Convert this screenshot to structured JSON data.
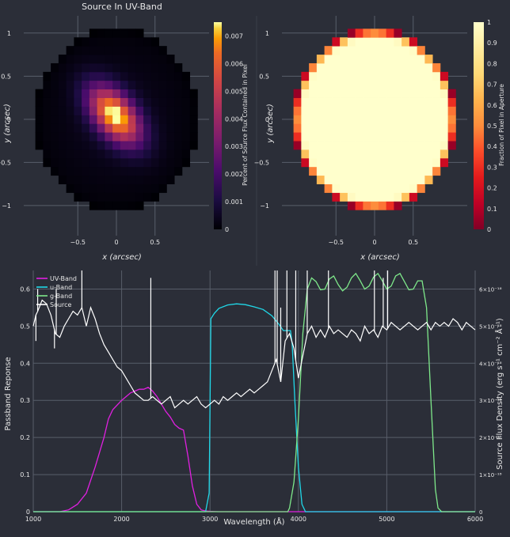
{
  "figure": {
    "background": "#2b2e38",
    "grid_color": "#585e6a",
    "text_color": "#e6e6e6"
  },
  "chart_data": [
    {
      "type": "heatmap",
      "title": "Source In UV-Band",
      "xlabel": "x (arcsec)",
      "ylabel": "y (arcsec)",
      "x_ticks": [
        "−0.5",
        "0",
        "0.5"
      ],
      "y_ticks": [
        "1",
        "0.5",
        "0",
        "−0.5",
        "−1"
      ],
      "xlim": [
        -1.2,
        1.2
      ],
      "ylim": [
        -1.35,
        1.2
      ],
      "colorscale": "inferno",
      "colorbar_label": "Percent of Source Flux Contained in Pixel",
      "colorbar_ticks": [
        "0.007",
        "0.006",
        "0.005",
        "0.004",
        "0.003",
        "0.002",
        "0.001",
        "0"
      ],
      "colorbar_range": [
        0,
        0.0075
      ],
      "source": {
        "peak": 0.0074,
        "center": [
          -0.02,
          0.05
        ],
        "major_axis_angle_deg": -45,
        "sigma_major": 0.28,
        "sigma_minor": 0.16,
        "background_level": 0.00045
      },
      "aperture_radius": 1.0,
      "pixel_size": 0.1
    },
    {
      "type": "heatmap",
      "title": "",
      "xlabel": "x (arcsec)",
      "ylabel": "y (arcsec)",
      "x_ticks": [
        "−0.5",
        "0",
        "0.5"
      ],
      "y_ticks": [
        "1",
        "0.5",
        "0",
        "−0.5",
        "−1"
      ],
      "xlim": [
        -1.2,
        1.2
      ],
      "ylim": [
        -1.35,
        1.2
      ],
      "colorscale": "ylorrd",
      "colorbar_label": "Fraction of Pixel in Aperture",
      "colorbar_ticks": [
        "1",
        "0.9",
        "0.8",
        "0.7",
        "0.6",
        "0.5",
        "0.4",
        "0.3",
        "0.2",
        "0.1",
        "0"
      ],
      "colorbar_range": [
        0,
        1
      ],
      "aperture_radius": 1.0,
      "pixel_size": 0.1
    },
    {
      "type": "line",
      "title": "",
      "xlabel": "Wavelength (Å)",
      "ylabel": "Passband Reponse",
      "y2label": "Source Flux Density (erg s⁻¹ cm⁻² Å⁻¹)",
      "xlim": [
        1000,
        6000
      ],
      "ylim": [
        0,
        0.65
      ],
      "y2lim": [
        0,
        6.5e-18
      ],
      "x_ticks": [
        "1000",
        "2000",
        "3000",
        "4000",
        "5000",
        "6000"
      ],
      "y_ticks": [
        "0",
        "0.1",
        "0.2",
        "0.3",
        "0.4",
        "0.5",
        "0.6"
      ],
      "y2_ticks": [
        "0",
        "1×10⁻¹⁸",
        "2×10⁻¹⁸",
        "3×10⁻¹⁸",
        "4×10⁻¹⁸",
        "5×10⁻¹⁸",
        "6×10⁻¹⁸"
      ],
      "legend_position": "top-left",
      "series": [
        {
          "name": "UV-Band",
          "color": "#e020e0",
          "axis": "y",
          "x": [
            1000,
            1300,
            1400,
            1500,
            1600,
            1700,
            1800,
            1850,
            1900,
            2000,
            2100,
            2150,
            2200,
            2250,
            2300,
            2350,
            2400,
            2450,
            2500,
            2550,
            2600,
            2650,
            2700,
            2750,
            2800,
            2850,
            2900,
            2950,
            3000,
            3100,
            6000
          ],
          "y": [
            0,
            0,
            0.005,
            0.02,
            0.05,
            0.12,
            0.2,
            0.25,
            0.275,
            0.3,
            0.32,
            0.325,
            0.33,
            0.33,
            0.335,
            0.325,
            0.31,
            0.29,
            0.27,
            0.255,
            0.235,
            0.225,
            0.22,
            0.15,
            0.07,
            0.02,
            0.005,
            0.002,
            0.001,
            0,
            0
          ]
        },
        {
          "name": "u-Band",
          "color": "#20d8e8",
          "axis": "y",
          "x": [
            1000,
            2950,
            2990,
            3010,
            3050,
            3100,
            3200,
            3300,
            3400,
            3500,
            3600,
            3700,
            3780,
            3830,
            3880,
            3910,
            3930,
            3960,
            4000,
            4040,
            4080,
            6000
          ],
          "y": [
            0,
            0,
            0.05,
            0.52,
            0.535,
            0.548,
            0.557,
            0.56,
            0.558,
            0.552,
            0.545,
            0.528,
            0.505,
            0.488,
            0.488,
            0.488,
            0.45,
            0.3,
            0.12,
            0.02,
            0,
            0
          ]
        },
        {
          "name": "g-Band",
          "color": "#7ee88a",
          "axis": "y",
          "x": [
            1000,
            3880,
            3900,
            3950,
            4000,
            4050,
            4100,
            4150,
            4200,
            4250,
            4300,
            4350,
            4400,
            4450,
            4500,
            4550,
            4600,
            4650,
            4700,
            4750,
            4800,
            4850,
            4900,
            4950,
            5000,
            5050,
            5100,
            5150,
            5200,
            5250,
            5300,
            5350,
            5400,
            5450,
            5500,
            5550,
            5580,
            5620,
            6000
          ],
          "y": [
            0,
            0,
            0.01,
            0.08,
            0.25,
            0.48,
            0.6,
            0.63,
            0.62,
            0.598,
            0.6,
            0.627,
            0.635,
            0.612,
            0.595,
            0.605,
            0.63,
            0.642,
            0.622,
            0.6,
            0.608,
            0.632,
            0.642,
            0.622,
            0.6,
            0.608,
            0.635,
            0.642,
            0.62,
            0.598,
            0.6,
            0.622,
            0.622,
            0.55,
            0.3,
            0.06,
            0.01,
            0,
            0
          ]
        },
        {
          "name": "Source",
          "color": "#ffffff",
          "axis": "y2",
          "x": [
            1000,
            1030,
            1050,
            1100,
            1150,
            1200,
            1250,
            1300,
            1350,
            1400,
            1450,
            1500,
            1550,
            1600,
            1650,
            1700,
            1750,
            1800,
            1850,
            1900,
            1950,
            2000,
            2050,
            2100,
            2150,
            2200,
            2250,
            2300,
            2350,
            2400,
            2450,
            2500,
            2550,
            2600,
            2650,
            2700,
            2750,
            2800,
            2850,
            2900,
            2950,
            3000,
            3050,
            3100,
            3150,
            3200,
            3250,
            3300,
            3350,
            3400,
            3450,
            3500,
            3550,
            3600,
            3650,
            3700,
            3750,
            3800,
            3850,
            3900,
            3950,
            4000,
            4050,
            4100,
            4150,
            4200,
            4250,
            4300,
            4350,
            4400,
            4450,
            4500,
            4550,
            4600,
            4650,
            4700,
            4750,
            4800,
            4850,
            4900,
            4950,
            5000,
            5050,
            5100,
            5150,
            5200,
            5250,
            5300,
            5350,
            5400,
            5450,
            5500,
            5550,
            5600,
            5650,
            5700,
            5750,
            5800,
            5850,
            5900,
            5950,
            6000
          ],
          "y": [
            5e-18,
            5.3e-18,
            5.4e-18,
            5.7e-18,
            5.6e-18,
            5.3e-18,
            4.8e-18,
            4.7e-18,
            5e-18,
            5.2e-18,
            5.4e-18,
            5.3e-18,
            5.5e-18,
            5e-18,
            5.5e-18,
            5.2e-18,
            4.8e-18,
            4.5e-18,
            4.3e-18,
            4.1e-18,
            3.9e-18,
            3.8e-18,
            3.6e-18,
            3.4e-18,
            3.2e-18,
            3.1e-18,
            3e-18,
            3e-18,
            3.1e-18,
            3e-18,
            2.9e-18,
            3e-18,
            3.1e-18,
            2.8e-18,
            2.9e-18,
            3e-18,
            2.9e-18,
            3e-18,
            3.1e-18,
            2.9e-18,
            2.8e-18,
            2.9e-18,
            3e-18,
            2.9e-18,
            3.1e-18,
            3e-18,
            3.1e-18,
            3.2e-18,
            3.1e-18,
            3.2e-18,
            3.3e-18,
            3.2e-18,
            3.3e-18,
            3.4e-18,
            3.5e-18,
            3.8e-18,
            4.1e-18,
            3.5e-18,
            4.6e-18,
            4.8e-18,
            4.4e-18,
            3.6e-18,
            4.2e-18,
            4.8e-18,
            5e-18,
            4.7e-18,
            4.9e-18,
            4.7e-18,
            5e-18,
            4.8e-18,
            4.9e-18,
            4.8e-18,
            4.7e-18,
            4.9e-18,
            4.8e-18,
            4.6e-18,
            5e-18,
            4.8e-18,
            4.9e-18,
            4.7e-18,
            5e-18,
            4.9e-18,
            5.1e-18,
            5e-18,
            4.9e-18,
            5e-18,
            5.1e-18,
            5e-18,
            4.9e-18,
            5e-18,
            5.1e-18,
            4.9e-18,
            5.1e-18,
            5e-18,
            5.1e-18,
            5e-18,
            5.2e-18,
            5.1e-18,
            4.9e-18,
            5.1e-18,
            5e-18,
            4.9e-18
          ]
        }
      ],
      "source_emission_lines": [
        {
          "x": 1030,
          "y": 4.6e-18
        },
        {
          "x": 1050,
          "y": 6e-18
        },
        {
          "x": 1240,
          "y": 4.4e-18
        },
        {
          "x": 1260,
          "y": 6e-18
        },
        {
          "x": 1550,
          "y": 6.6e-18
        },
        {
          "x": 2330,
          "y": 6.3e-18
        },
        {
          "x": 3735,
          "y": 6.6e-18
        },
        {
          "x": 3760,
          "y": 6.6e-18
        },
        {
          "x": 3800,
          "y": 5.5e-18
        },
        {
          "x": 3870,
          "y": 6.6e-18
        },
        {
          "x": 3970,
          "y": 6.6e-18
        },
        {
          "x": 4100,
          "y": 6.6e-18
        },
        {
          "x": 4340,
          "y": 6.6e-18
        },
        {
          "x": 4860,
          "y": 6.6e-18
        },
        {
          "x": 4960,
          "y": 6.3e-18
        },
        {
          "x": 5010,
          "y": 6.6e-18
        }
      ]
    }
  ]
}
